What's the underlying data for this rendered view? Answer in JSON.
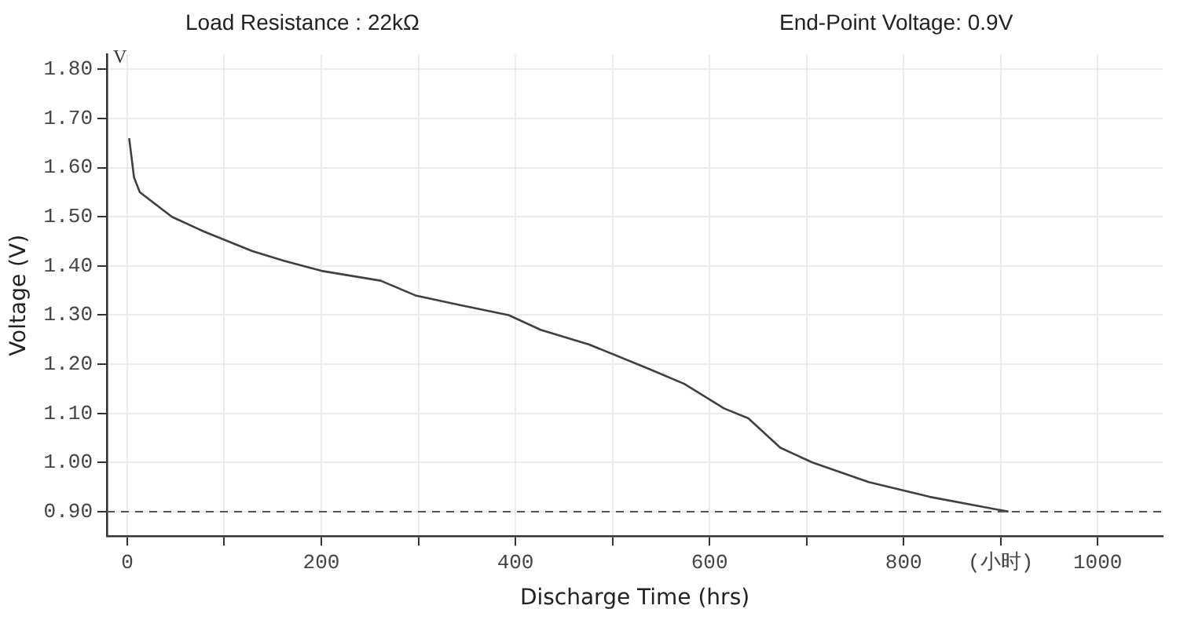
{
  "chart_data": {
    "type": "line",
    "xlabel": "Discharge Time (hrs)",
    "ylabel": "Voltage (V)",
    "annotations": [
      "Load Resistance : 22kΩ",
      "End-Point Voltage: 0.9V",
      "V"
    ],
    "x": [
      2,
      7,
      13,
      46,
      79,
      129,
      162,
      200,
      261,
      297,
      344,
      393,
      426,
      476,
      538,
      574,
      615,
      640,
      673,
      706,
      764,
      827,
      908
    ],
    "series": [
      {
        "color": "#404040",
        "values": [
          1.66,
          1.58,
          1.55,
          1.5,
          1.47,
          1.43,
          1.41,
          1.39,
          1.37,
          1.34,
          1.32,
          1.3,
          1.27,
          1.24,
          1.19,
          1.16,
          1.11,
          1.09,
          1.03,
          1.0,
          0.96,
          0.93,
          0.9
        ]
      }
    ],
    "xlim": [
      -21,
      1067
    ],
    "ylim": [
      0.85,
      1.83
    ],
    "xticks": [
      0,
      {
        "value": 100,
        "label": null
      },
      200,
      {
        "value": 300,
        "label": null
      },
      400,
      {
        "value": 500,
        "label": null
      },
      600,
      {
        "value": 700,
        "label": null
      },
      800,
      {
        "value": 900,
        "label": "(小时)"
      },
      1000
    ],
    "yticks": [
      {
        "value": 0.9,
        "label": "0.90"
      },
      {
        "value": 1.0,
        "label": "1.00"
      },
      {
        "value": 1.1,
        "label": "1.10"
      },
      {
        "value": 1.2,
        "label": "1.20"
      },
      {
        "value": 1.3,
        "label": "1.30"
      },
      {
        "value": 1.4,
        "label": "1.40"
      },
      {
        "value": 1.5,
        "label": "1.50"
      },
      {
        "value": 1.6,
        "label": "1.60"
      },
      {
        "value": 1.7,
        "label": "1.70"
      },
      {
        "value": 1.8,
        "label": "1.80"
      }
    ],
    "ref_lines": [
      {
        "axis": "y",
        "value": 0.9,
        "color": "#555555",
        "line_style": "dashed"
      }
    ],
    "grid": true,
    "marker": "none",
    "line_style": "solid"
  }
}
